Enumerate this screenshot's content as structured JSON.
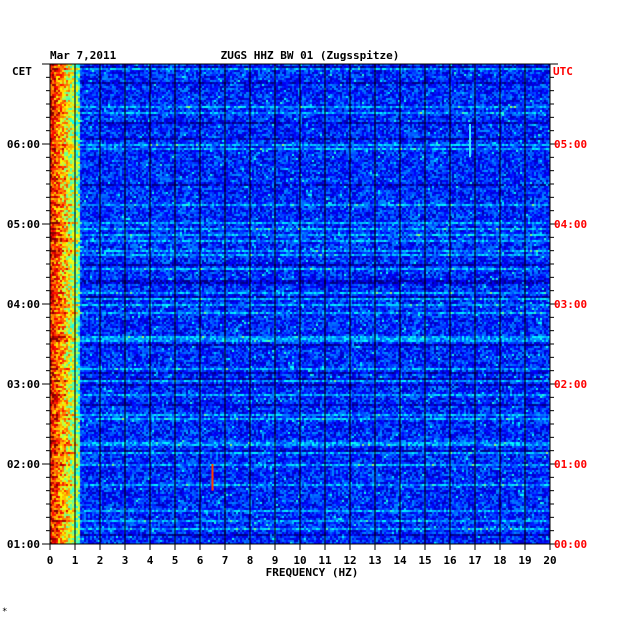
{
  "header": {
    "date": "Mar 7,2011",
    "station": "ZUGS HHZ BW 01 (Zugsspitze)"
  },
  "colors": {
    "left_axis_text": "#000000",
    "right_axis_text": "#ff0000",
    "grid": "#000000",
    "background_plot": "#0000a0"
  },
  "footer_mark": "*",
  "chart_data": {
    "type": "heatmap",
    "title": "ZUGS HHZ BW 01 (Zugsspitze)",
    "xlabel": "FREQUENCY (HZ)",
    "xlim": [
      0,
      20
    ],
    "x_ticks": [
      "0",
      "1",
      "2",
      "3",
      "4",
      "5",
      "6",
      "7",
      "8",
      "9",
      "10",
      "11",
      "12",
      "13",
      "14",
      "15",
      "16",
      "17",
      "18",
      "19",
      "20"
    ],
    "left_axis": {
      "label": "CET",
      "ticks": [
        "06:00",
        "05:00",
        "04:00",
        "03:00",
        "02:00",
        "01:00"
      ]
    },
    "right_axis": {
      "label": "UTC",
      "ticks": [
        "05:00",
        "04:00",
        "03:00",
        "02:00",
        "01:00",
        "00:00"
      ]
    },
    "time_range_cet": [
      "01:00",
      "07:00"
    ],
    "colormap": "jet",
    "features": [
      {
        "description": "high energy band",
        "freq_hz": [
          0,
          1.2
        ]
      },
      {
        "description": "narrow signal",
        "freq_hz": 6.5,
        "time_cet": [
          "01:40",
          "02:00"
        ]
      },
      {
        "description": "weak line",
        "freq_hz": 16.8,
        "time_cet": [
          "05:50",
          "06:15"
        ]
      }
    ]
  }
}
